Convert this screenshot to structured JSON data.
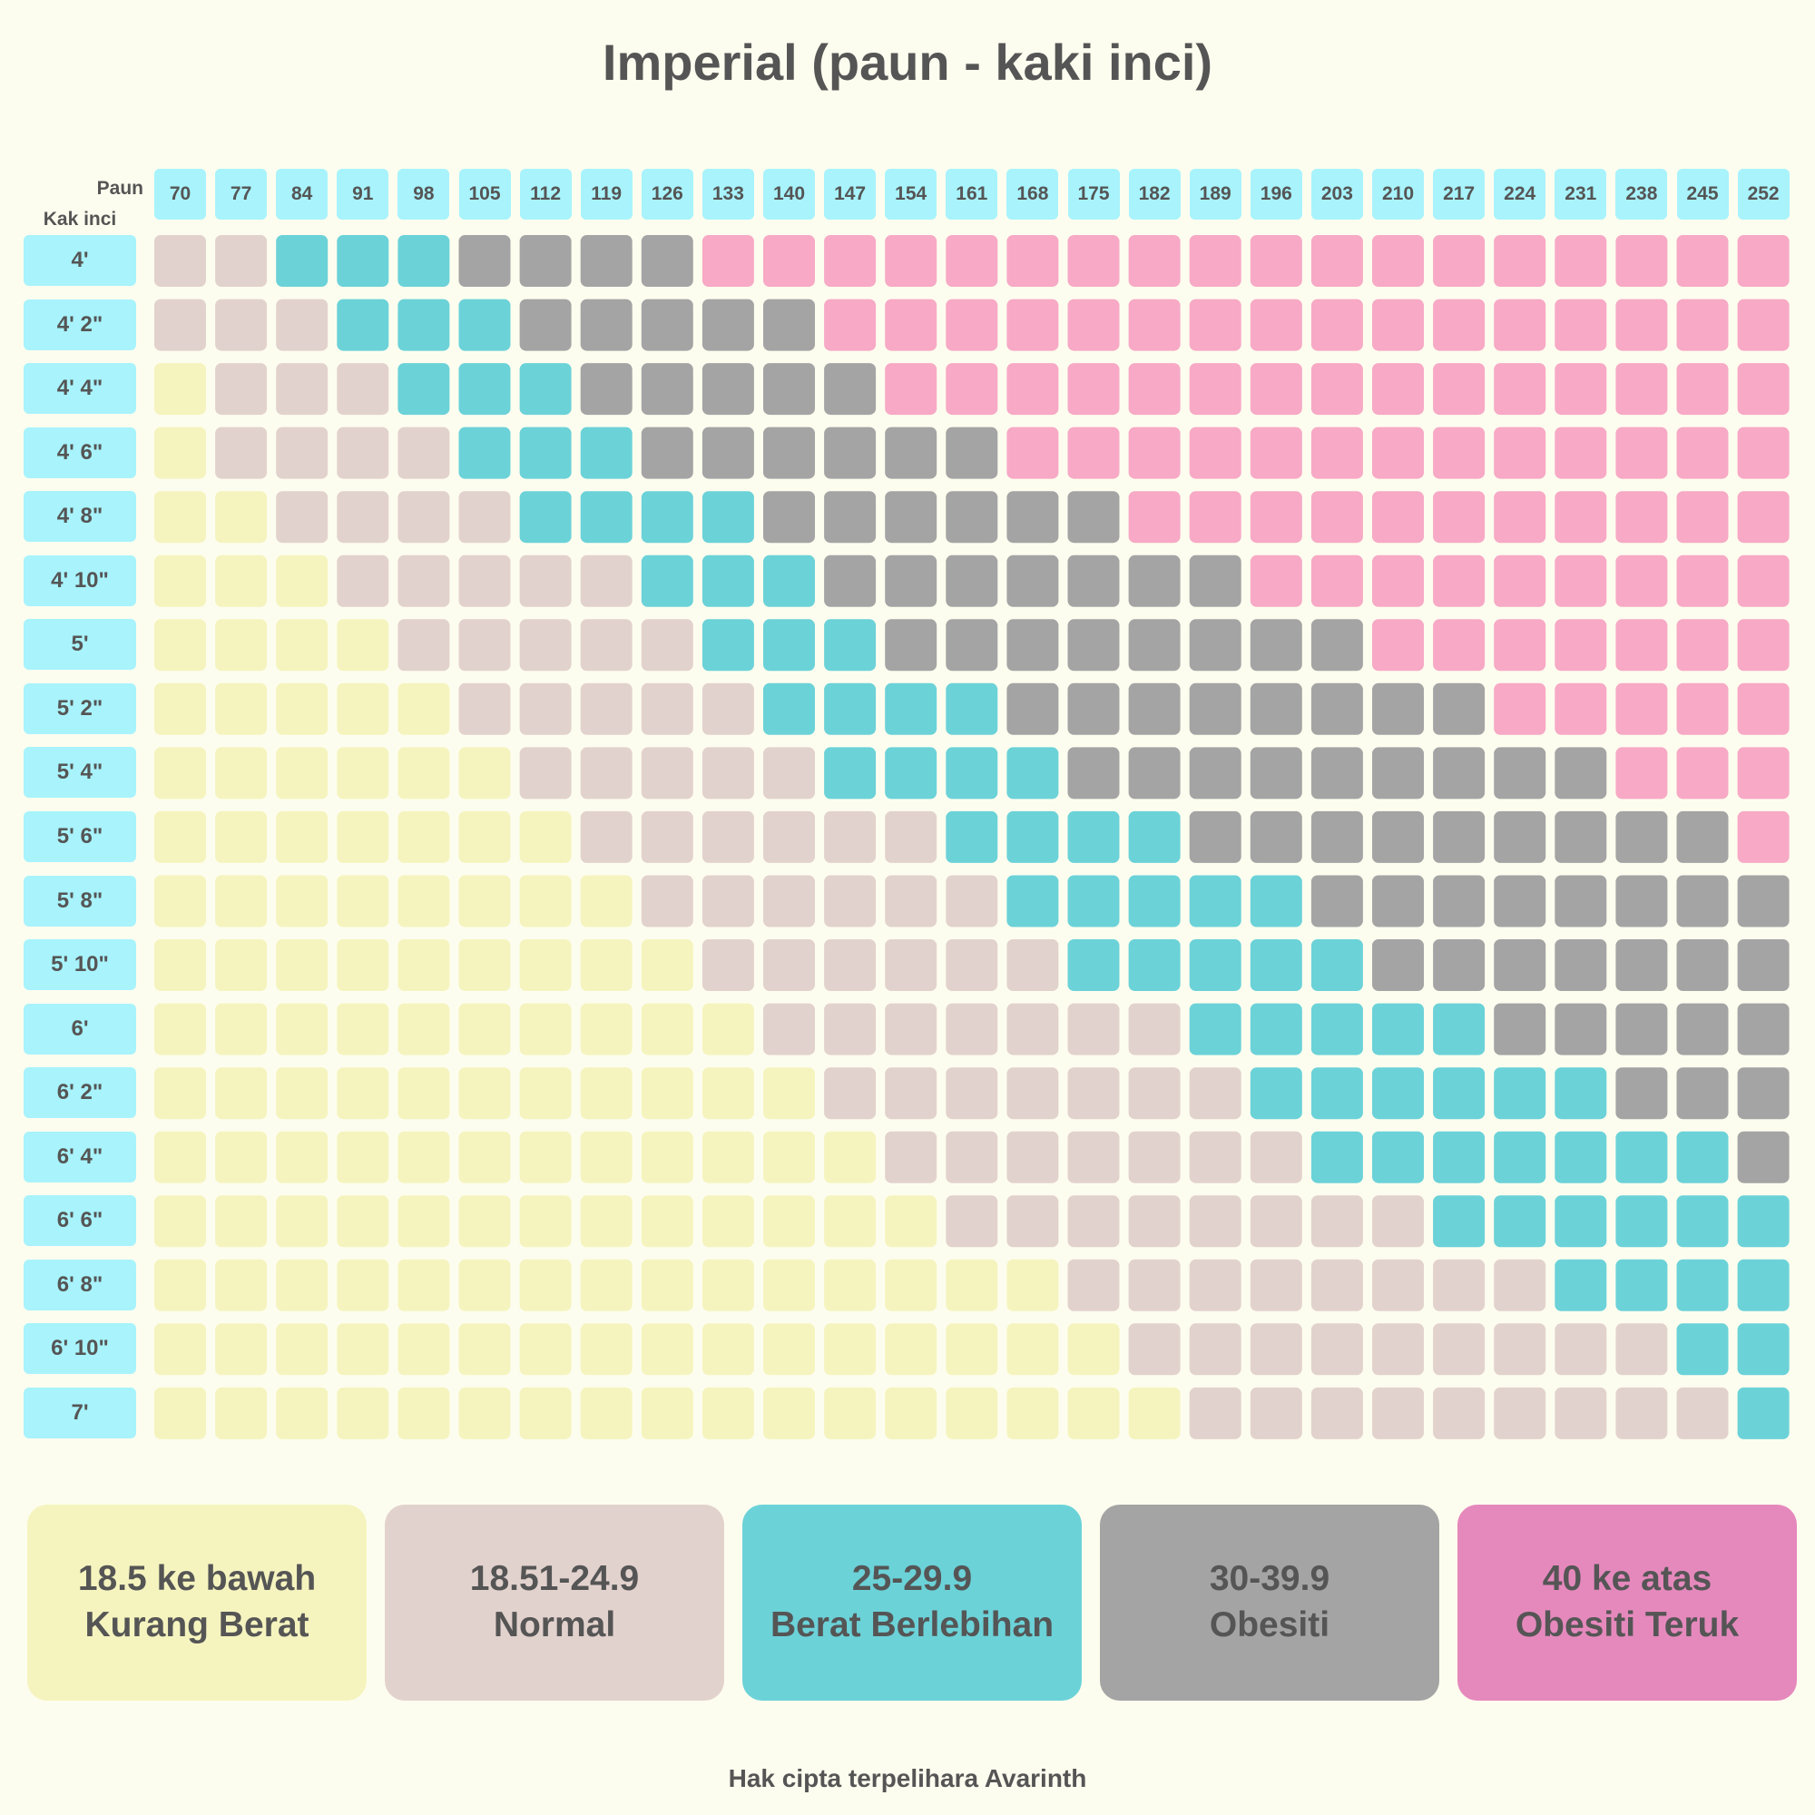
{
  "title": "Imperial (paun - kaki inci)",
  "footer": "Hak cipta terpelihara Avarinth",
  "colors": {
    "underweight": "#f5f4bf",
    "normal": "#e2d2cd",
    "overweight": "#6bd2d8",
    "obese": "#a4a4a4",
    "severe_cell": "#f7a9c5",
    "severe_legend": "#e589bd",
    "label_bg": "#a8f3fc"
  },
  "chart_data": {
    "type": "heatmap",
    "title": "Imperial (paun - kaki inci)",
    "xlabel": "Paun",
    "ylabel": "Kak inci",
    "x": [
      "70",
      "77",
      "84",
      "91",
      "98",
      "105",
      "112",
      "119",
      "126",
      "133",
      "140",
      "147",
      "154",
      "161",
      "168",
      "175",
      "182",
      "189",
      "196",
      "203",
      "210",
      "217",
      "224",
      "231",
      "238",
      "245",
      "252"
    ],
    "y": [
      "4'",
      "4' 2\"",
      "4' 4\"",
      "4' 6\"",
      "4' 8\"",
      "4' 10\"",
      "5'",
      "5' 2\"",
      "5' 4\"",
      "5' 6\"",
      "5' 8\"",
      "5' 10\"",
      "6'",
      "6' 2\"",
      "6' 4\"",
      "6' 6\"",
      "6' 8\"",
      "6' 10\"",
      "7'"
    ],
    "category_codes": "0 = Kurang Berat, 1 = Normal, 2 = Berat Berlebihan, 3 = Obesiti, 4 = Obesiti Teruk",
    "cells": [
      [
        1,
        1,
        2,
        2,
        2,
        3,
        3,
        3,
        3,
        4,
        4,
        4,
        4,
        4,
        4,
        4,
        4,
        4,
        4,
        4,
        4,
        4,
        4,
        4,
        4,
        4,
        4
      ],
      [
        1,
        1,
        1,
        2,
        2,
        2,
        3,
        3,
        3,
        3,
        3,
        4,
        4,
        4,
        4,
        4,
        4,
        4,
        4,
        4,
        4,
        4,
        4,
        4,
        4,
        4,
        4
      ],
      [
        0,
        1,
        1,
        1,
        2,
        2,
        2,
        3,
        3,
        3,
        3,
        3,
        4,
        4,
        4,
        4,
        4,
        4,
        4,
        4,
        4,
        4,
        4,
        4,
        4,
        4,
        4
      ],
      [
        0,
        1,
        1,
        1,
        1,
        2,
        2,
        2,
        3,
        3,
        3,
        3,
        3,
        3,
        4,
        4,
        4,
        4,
        4,
        4,
        4,
        4,
        4,
        4,
        4,
        4,
        4
      ],
      [
        0,
        0,
        1,
        1,
        1,
        1,
        2,
        2,
        2,
        2,
        3,
        3,
        3,
        3,
        3,
        3,
        4,
        4,
        4,
        4,
        4,
        4,
        4,
        4,
        4,
        4,
        4
      ],
      [
        0,
        0,
        0,
        1,
        1,
        1,
        1,
        1,
        2,
        2,
        2,
        3,
        3,
        3,
        3,
        3,
        3,
        3,
        4,
        4,
        4,
        4,
        4,
        4,
        4,
        4,
        4
      ],
      [
        0,
        0,
        0,
        0,
        1,
        1,
        1,
        1,
        1,
        2,
        2,
        2,
        3,
        3,
        3,
        3,
        3,
        3,
        3,
        3,
        4,
        4,
        4,
        4,
        4,
        4,
        4
      ],
      [
        0,
        0,
        0,
        0,
        0,
        1,
        1,
        1,
        1,
        1,
        2,
        2,
        2,
        2,
        3,
        3,
        3,
        3,
        3,
        3,
        3,
        3,
        4,
        4,
        4,
        4,
        4
      ],
      [
        0,
        0,
        0,
        0,
        0,
        0,
        1,
        1,
        1,
        1,
        1,
        2,
        2,
        2,
        2,
        3,
        3,
        3,
        3,
        3,
        3,
        3,
        3,
        3,
        4,
        4,
        4
      ],
      [
        0,
        0,
        0,
        0,
        0,
        0,
        0,
        1,
        1,
        1,
        1,
        1,
        1,
        2,
        2,
        2,
        2,
        3,
        3,
        3,
        3,
        3,
        3,
        3,
        3,
        3,
        4
      ],
      [
        0,
        0,
        0,
        0,
        0,
        0,
        0,
        0,
        1,
        1,
        1,
        1,
        1,
        1,
        2,
        2,
        2,
        2,
        2,
        3,
        3,
        3,
        3,
        3,
        3,
        3,
        3
      ],
      [
        0,
        0,
        0,
        0,
        0,
        0,
        0,
        0,
        0,
        1,
        1,
        1,
        1,
        1,
        1,
        2,
        2,
        2,
        2,
        2,
        3,
        3,
        3,
        3,
        3,
        3,
        3
      ],
      [
        0,
        0,
        0,
        0,
        0,
        0,
        0,
        0,
        0,
        0,
        1,
        1,
        1,
        1,
        1,
        1,
        1,
        2,
        2,
        2,
        2,
        2,
        3,
        3,
        3,
        3,
        3
      ],
      [
        0,
        0,
        0,
        0,
        0,
        0,
        0,
        0,
        0,
        0,
        0,
        1,
        1,
        1,
        1,
        1,
        1,
        1,
        2,
        2,
        2,
        2,
        2,
        2,
        3,
        3,
        3
      ],
      [
        0,
        0,
        0,
        0,
        0,
        0,
        0,
        0,
        0,
        0,
        0,
        0,
        1,
        1,
        1,
        1,
        1,
        1,
        1,
        2,
        2,
        2,
        2,
        2,
        2,
        2,
        3
      ],
      [
        0,
        0,
        0,
        0,
        0,
        0,
        0,
        0,
        0,
        0,
        0,
        0,
        0,
        1,
        1,
        1,
        1,
        1,
        1,
        1,
        1,
        2,
        2,
        2,
        2,
        2,
        2
      ],
      [
        0,
        0,
        0,
        0,
        0,
        0,
        0,
        0,
        0,
        0,
        0,
        0,
        0,
        0,
        0,
        1,
        1,
        1,
        1,
        1,
        1,
        1,
        1,
        2,
        2,
        2,
        2
      ],
      [
        0,
        0,
        0,
        0,
        0,
        0,
        0,
        0,
        0,
        0,
        0,
        0,
        0,
        0,
        0,
        0,
        1,
        1,
        1,
        1,
        1,
        1,
        1,
        1,
        1,
        2,
        2
      ],
      [
        0,
        0,
        0,
        0,
        0,
        0,
        0,
        0,
        0,
        0,
        0,
        0,
        0,
        0,
        0,
        0,
        0,
        1,
        1,
        1,
        1,
        1,
        1,
        1,
        1,
        1,
        2
      ]
    ]
  },
  "legend": [
    {
      "range": "18.5 ke bawah",
      "label": "Kurang Berat"
    },
    {
      "range": "18.51-24.9",
      "label": "Normal"
    },
    {
      "range": "25-29.9",
      "label": "Berat Berlebihan"
    },
    {
      "range": "30-39.9",
      "label": "Obesiti"
    },
    {
      "range": "40 ke atas",
      "label": "Obesiti Teruk"
    }
  ]
}
